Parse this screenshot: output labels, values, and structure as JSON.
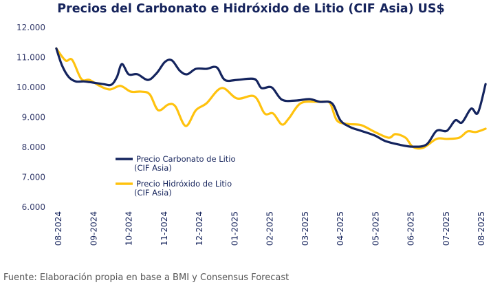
{
  "chart_data": {
    "type": "line",
    "title": "Precios del Carbonato e Hidróxido de Litio (CIF Asia) US$",
    "xlabel": "",
    "ylabel": "",
    "x_tick_labels": [
      "08-2024",
      "09-2024",
      "10-2024",
      "11-2024",
      "12-2024",
      "01-2025",
      "02-2025",
      "03-2025",
      "04-2025",
      "05-2025",
      "06-2025",
      "07-2025",
      "08-2025"
    ],
    "y_tick_labels": [
      "6.000",
      "7.000",
      "8.000",
      "9.000",
      "10.000",
      "11.000",
      "12.000"
    ],
    "y_ticks": [
      6000,
      7000,
      8000,
      9000,
      10000,
      11000,
      12000
    ],
    "ylim": [
      6000,
      12000
    ],
    "x_unit": "months since 08-2024",
    "xlim": [
      0,
      12
    ],
    "grid": false,
    "legend_position": "center-left",
    "series": [
      {
        "name": "Precio Carbonato de Litio (CIF Asia)",
        "color": "#14245e",
        "points": [
          [
            -0.06,
            11300
          ],
          [
            0.1,
            10740
          ],
          [
            0.29,
            10350
          ],
          [
            0.49,
            10200
          ],
          [
            0.72,
            10200
          ],
          [
            0.98,
            10160
          ],
          [
            1.27,
            10110
          ],
          [
            1.5,
            10090
          ],
          [
            1.66,
            10350
          ],
          [
            1.8,
            10780
          ],
          [
            1.99,
            10440
          ],
          [
            2.24,
            10440
          ],
          [
            2.54,
            10250
          ],
          [
            2.79,
            10480
          ],
          [
            3.02,
            10850
          ],
          [
            3.22,
            10900
          ],
          [
            3.45,
            10550
          ],
          [
            3.65,
            10440
          ],
          [
            3.9,
            10620
          ],
          [
            4.2,
            10620
          ],
          [
            4.49,
            10670
          ],
          [
            4.72,
            10250
          ],
          [
            5.07,
            10250
          ],
          [
            5.56,
            10280
          ],
          [
            5.76,
            9980
          ],
          [
            6.05,
            10000
          ],
          [
            6.34,
            9590
          ],
          [
            6.73,
            9560
          ],
          [
            7.12,
            9610
          ],
          [
            7.41,
            9520
          ],
          [
            7.76,
            9470
          ],
          [
            8.0,
            8900
          ],
          [
            8.29,
            8670
          ],
          [
            8.59,
            8550
          ],
          [
            8.98,
            8390
          ],
          [
            9.27,
            8210
          ],
          [
            9.66,
            8090
          ],
          [
            10.05,
            8020
          ],
          [
            10.44,
            8090
          ],
          [
            10.73,
            8550
          ],
          [
            11.02,
            8550
          ],
          [
            11.26,
            8900
          ],
          [
            11.45,
            8830
          ],
          [
            11.71,
            9290
          ],
          [
            11.9,
            9150
          ],
          [
            12.12,
            10110
          ]
        ]
      },
      {
        "name": "Precio Hidróxido de Litio (CIF Asia)",
        "color": "#ffc20e",
        "points": [
          [
            -0.06,
            11300
          ],
          [
            0.2,
            10900
          ],
          [
            0.39,
            10920
          ],
          [
            0.65,
            10280
          ],
          [
            0.88,
            10250
          ],
          [
            1.17,
            10050
          ],
          [
            1.46,
            9930
          ],
          [
            1.76,
            10050
          ],
          [
            2.05,
            9860
          ],
          [
            2.34,
            9860
          ],
          [
            2.59,
            9770
          ],
          [
            2.83,
            9240
          ],
          [
            3.12,
            9430
          ],
          [
            3.32,
            9360
          ],
          [
            3.61,
            8710
          ],
          [
            3.9,
            9240
          ],
          [
            4.2,
            9470
          ],
          [
            4.63,
            9980
          ],
          [
            5.07,
            9630
          ],
          [
            5.56,
            9700
          ],
          [
            5.85,
            9130
          ],
          [
            6.09,
            9130
          ],
          [
            6.34,
            8760
          ],
          [
            6.54,
            8970
          ],
          [
            6.87,
            9470
          ],
          [
            7.32,
            9520
          ],
          [
            7.51,
            9520
          ],
          [
            7.71,
            9470
          ],
          [
            7.9,
            8900
          ],
          [
            8.2,
            8780
          ],
          [
            8.59,
            8740
          ],
          [
            8.98,
            8510
          ],
          [
            9.37,
            8320
          ],
          [
            9.56,
            8440
          ],
          [
            9.85,
            8320
          ],
          [
            10.05,
            8020
          ],
          [
            10.34,
            7980
          ],
          [
            10.73,
            8280
          ],
          [
            11.02,
            8280
          ],
          [
            11.37,
            8320
          ],
          [
            11.61,
            8530
          ],
          [
            11.84,
            8510
          ],
          [
            12.12,
            8620
          ]
        ]
      }
    ]
  },
  "header": {
    "title": "Precios del Carbonato e Hidróxido de Litio (CIF Asia) US$"
  },
  "legend": {
    "items": [
      {
        "line1": "Precio Carbonato de Litio",
        "line2": "(CIF Asia)"
      },
      {
        "line1": "Precio Hidróxido de Litio",
        "line2": "(CIF Asia)"
      }
    ]
  },
  "footer": {
    "source": "Fuente: Elaboración propia en base a BMI y Consensus Forecast"
  }
}
